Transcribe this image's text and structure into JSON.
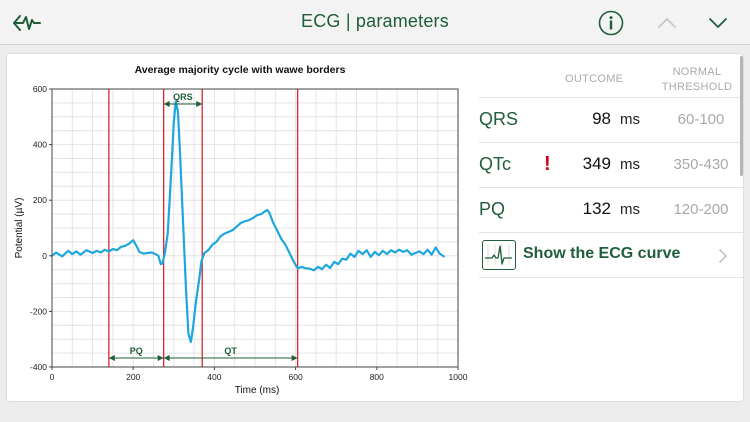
{
  "header": {
    "title": "ECG | parameters",
    "accent": "#1f5e3a",
    "icons": [
      "back-icon",
      "info-icon",
      "chevron-up-icon",
      "chevron-down-icon"
    ]
  },
  "chart_data": {
    "type": "line",
    "title": "Average majority cycle with wawe borders",
    "xlabel": "Time (ms)",
    "ylabel": "Potential (µV)",
    "xlim": [
      0,
      1000
    ],
    "ylim": [
      -400,
      600
    ],
    "x_ticks": [
      0,
      200,
      400,
      600,
      800,
      1000
    ],
    "y_ticks": [
      600,
      400,
      200,
      0,
      -200,
      -400
    ],
    "grid": true,
    "series": [
      {
        "color": "#1ea7dd",
        "x": [
          0,
          10,
          25,
          40,
          50,
          60,
          70,
          85,
          100,
          110,
          120,
          130,
          140,
          150,
          160,
          170,
          180,
          190,
          200,
          210,
          215,
          225,
          235,
          245,
          255,
          262,
          268,
          272,
          278,
          285,
          292,
          300,
          305,
          310,
          315,
          322,
          330,
          336,
          342,
          348,
          355,
          362,
          368,
          375,
          385,
          395,
          405,
          415,
          425,
          435,
          445,
          455,
          465,
          475,
          485,
          495,
          505,
          515,
          525,
          530,
          535,
          545,
          555,
          565,
          575,
          585,
          595,
          605,
          615,
          625,
          635,
          645,
          655,
          665,
          675,
          685,
          695,
          705,
          715,
          725,
          735,
          745,
          755,
          765,
          775,
          785,
          795,
          805,
          815,
          825,
          835,
          845,
          855,
          865,
          875,
          885,
          895,
          905,
          915,
          925,
          935,
          945,
          955,
          965
        ],
        "y": [
          0,
          12,
          -2,
          18,
          6,
          16,
          4,
          20,
          10,
          18,
          12,
          22,
          16,
          24,
          20,
          32,
          36,
          44,
          56,
          30,
          14,
          8,
          10,
          12,
          6,
          0,
          -30,
          -28,
          10,
          80,
          260,
          480,
          555,
          520,
          380,
          150,
          -120,
          -280,
          -310,
          -250,
          -160,
          -90,
          -20,
          10,
          20,
          40,
          50,
          70,
          80,
          86,
          92,
          105,
          118,
          124,
          128,
          136,
          146,
          150,
          160,
          165,
          156,
          118,
          90,
          60,
          40,
          10,
          -20,
          -45,
          -40,
          -45,
          -46,
          -52,
          -40,
          -48,
          -32,
          -44,
          -22,
          -30,
          -10,
          -14,
          8,
          -4,
          18,
          6,
          20,
          -4,
          14,
          2,
          18,
          6,
          20,
          12,
          22,
          14,
          20,
          4,
          10,
          16,
          6,
          22,
          4,
          30,
          8,
          -2
        ]
      }
    ],
    "borders_ms": [
      140,
      275,
      370,
      605
    ],
    "intervals": [
      {
        "label": "QRS",
        "from": 275,
        "to": 370,
        "position": "top"
      },
      {
        "label": "PQ",
        "from": 140,
        "to": 275,
        "position": "bottom"
      },
      {
        "label": "QT",
        "from": 275,
        "to": 605,
        "position": "bottom"
      }
    ],
    "border_color": "#d9262c",
    "interval_color": "#1f5e3a"
  },
  "results": {
    "outcome_header": "OUTCOME",
    "threshold_header_line1": "NORMAL",
    "threshold_header_line2": "THRESHOLD",
    "rows": [
      {
        "label": "QRS",
        "value": "98",
        "unit": "ms",
        "range": "60-100",
        "alert": ""
      },
      {
        "label": "QTc",
        "value": "349",
        "unit": "ms",
        "range": "350-430",
        "alert": "!"
      },
      {
        "label": "PQ",
        "value": "132",
        "unit": "ms",
        "range": "120-200",
        "alert": ""
      }
    ],
    "alert_color": "#d0021b",
    "ecg_link_label": "Show the ECG curve"
  }
}
